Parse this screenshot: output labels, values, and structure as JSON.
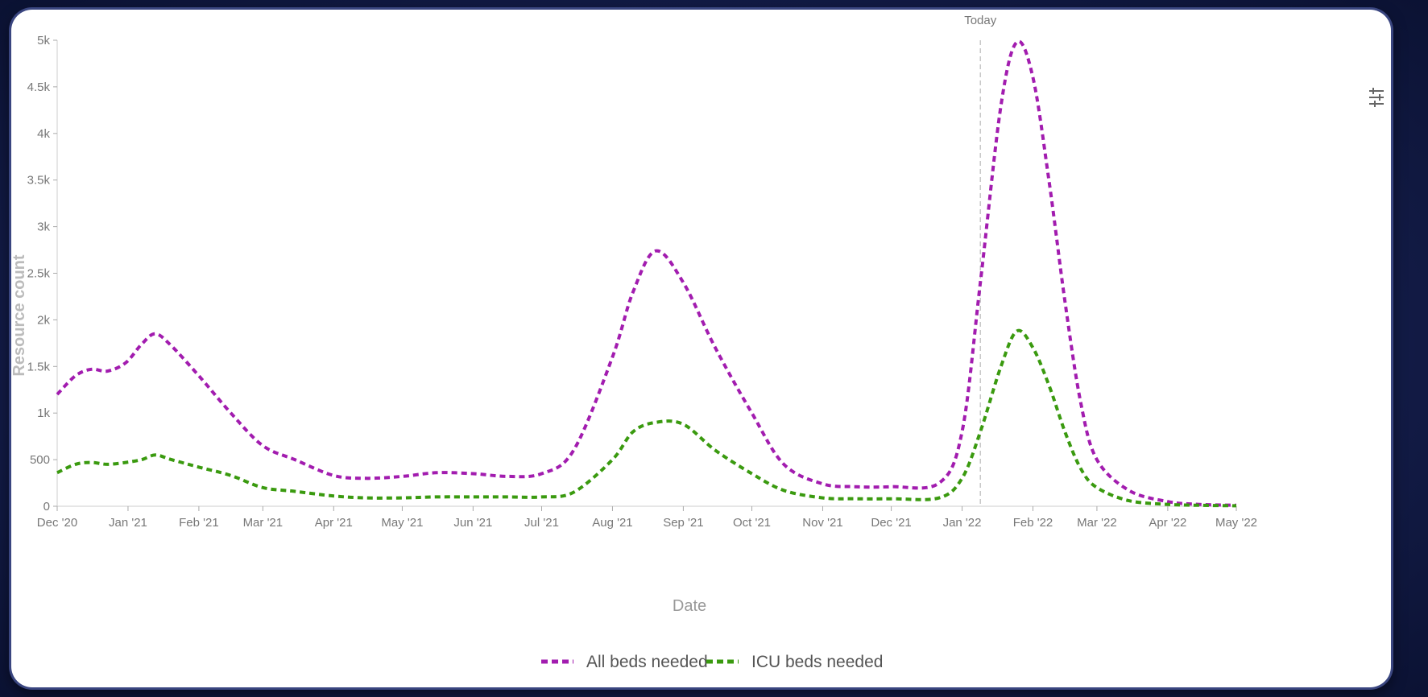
{
  "chart_data": {
    "type": "line",
    "title": "",
    "xlabel": "Date",
    "ylabel": "Resource count",
    "ylim": [
      0,
      5000
    ],
    "y_ticks": [
      0,
      500,
      1000,
      1500,
      2000,
      2500,
      3000,
      3500,
      4000,
      4500,
      5000
    ],
    "y_tick_labels": [
      "0",
      "500",
      "1k",
      "1.5k",
      "2k",
      "2.5k",
      "3k",
      "3.5k",
      "4k",
      "4.5k",
      "5k"
    ],
    "x_range": [
      "2020-12-01",
      "2022-05-01"
    ],
    "x_ticks": [
      "2020-12-01",
      "2021-01-01",
      "2021-02-01",
      "2021-03-01",
      "2021-04-01",
      "2021-05-01",
      "2021-06-01",
      "2021-07-01",
      "2021-08-01",
      "2021-09-01",
      "2021-10-01",
      "2021-11-01",
      "2021-12-01",
      "2022-01-01",
      "2022-02-01",
      "2022-03-01",
      "2022-04-01",
      "2022-05-01"
    ],
    "x_tick_labels": [
      "Dec '20",
      "Jan '21",
      "Feb '21",
      "Mar '21",
      "Apr '21",
      "May '21",
      "Jun '21",
      "Jul '21",
      "Aug '21",
      "Sep '21",
      "Oct '21",
      "Nov '21",
      "Dec '21",
      "Jan '22",
      "Feb '22",
      "Mar '22",
      "Apr '22",
      "May '22"
    ],
    "annotation": {
      "label": "Today",
      "x": "2022-01-09"
    },
    "grid": false,
    "legend_position": "bottom-center",
    "series": [
      {
        "name": "All beds needed",
        "color": "#a21caf",
        "points": [
          [
            "2020-12-01",
            1200
          ],
          [
            "2020-12-09",
            1400
          ],
          [
            "2020-12-16",
            1470
          ],
          [
            "2020-12-23",
            1450
          ],
          [
            "2020-12-31",
            1540
          ],
          [
            "2021-01-07",
            1740
          ],
          [
            "2021-01-13",
            1850
          ],
          [
            "2021-01-20",
            1720
          ],
          [
            "2021-02-01",
            1400
          ],
          [
            "2021-02-15",
            1000
          ],
          [
            "2021-03-01",
            650
          ],
          [
            "2021-03-15",
            500
          ],
          [
            "2021-04-01",
            330
          ],
          [
            "2021-04-15",
            300
          ],
          [
            "2021-05-01",
            320
          ],
          [
            "2021-05-16",
            360
          ],
          [
            "2021-06-01",
            350
          ],
          [
            "2021-06-16",
            320
          ],
          [
            "2021-07-01",
            350
          ],
          [
            "2021-07-15",
            600
          ],
          [
            "2021-08-01",
            1600
          ],
          [
            "2021-08-10",
            2300
          ],
          [
            "2021-08-20",
            2740
          ],
          [
            "2021-09-01",
            2400
          ],
          [
            "2021-09-15",
            1700
          ],
          [
            "2021-10-01",
            1000
          ],
          [
            "2021-10-15",
            450
          ],
          [
            "2021-11-01",
            240
          ],
          [
            "2021-11-15",
            210
          ],
          [
            "2021-12-01",
            210
          ],
          [
            "2021-12-22",
            250
          ],
          [
            "2022-01-01",
            800
          ],
          [
            "2022-01-09",
            2400
          ],
          [
            "2022-01-18",
            4300
          ],
          [
            "2022-01-25",
            4980
          ],
          [
            "2022-02-01",
            4600
          ],
          [
            "2022-02-08",
            3500
          ],
          [
            "2022-02-15",
            2200
          ],
          [
            "2022-02-22",
            1100
          ],
          [
            "2022-03-01",
            500
          ],
          [
            "2022-03-15",
            170
          ],
          [
            "2022-04-01",
            50
          ],
          [
            "2022-04-15",
            20
          ],
          [
            "2022-05-01",
            10
          ]
        ]
      },
      {
        "name": "ICU beds needed",
        "color": "#3a9a0f",
        "points": [
          [
            "2020-12-01",
            360
          ],
          [
            "2020-12-09",
            450
          ],
          [
            "2020-12-16",
            470
          ],
          [
            "2020-12-23",
            450
          ],
          [
            "2020-12-31",
            470
          ],
          [
            "2021-01-07",
            500
          ],
          [
            "2021-01-13",
            550
          ],
          [
            "2021-01-20",
            500
          ],
          [
            "2021-02-01",
            420
          ],
          [
            "2021-02-15",
            330
          ],
          [
            "2021-03-01",
            200
          ],
          [
            "2021-03-15",
            160
          ],
          [
            "2021-04-01",
            110
          ],
          [
            "2021-04-15",
            90
          ],
          [
            "2021-05-01",
            90
          ],
          [
            "2021-05-16",
            100
          ],
          [
            "2021-06-01",
            100
          ],
          [
            "2021-06-16",
            100
          ],
          [
            "2021-07-01",
            100
          ],
          [
            "2021-07-15",
            150
          ],
          [
            "2021-08-01",
            500
          ],
          [
            "2021-08-10",
            800
          ],
          [
            "2021-08-20",
            900
          ],
          [
            "2021-09-01",
            880
          ],
          [
            "2021-09-15",
            600
          ],
          [
            "2021-10-01",
            350
          ],
          [
            "2021-10-15",
            170
          ],
          [
            "2021-11-01",
            90
          ],
          [
            "2021-11-15",
            80
          ],
          [
            "2021-12-01",
            80
          ],
          [
            "2021-12-22",
            90
          ],
          [
            "2022-01-01",
            300
          ],
          [
            "2022-01-09",
            800
          ],
          [
            "2022-01-18",
            1500
          ],
          [
            "2022-01-25",
            1880
          ],
          [
            "2022-02-01",
            1700
          ],
          [
            "2022-02-08",
            1300
          ],
          [
            "2022-02-15",
            800
          ],
          [
            "2022-02-22",
            400
          ],
          [
            "2022-03-01",
            200
          ],
          [
            "2022-03-15",
            60
          ],
          [
            "2022-04-01",
            20
          ],
          [
            "2022-04-15",
            10
          ],
          [
            "2022-05-01",
            5
          ]
        ]
      }
    ]
  },
  "chart_menu": {
    "icon": "filter-settings-icon"
  }
}
